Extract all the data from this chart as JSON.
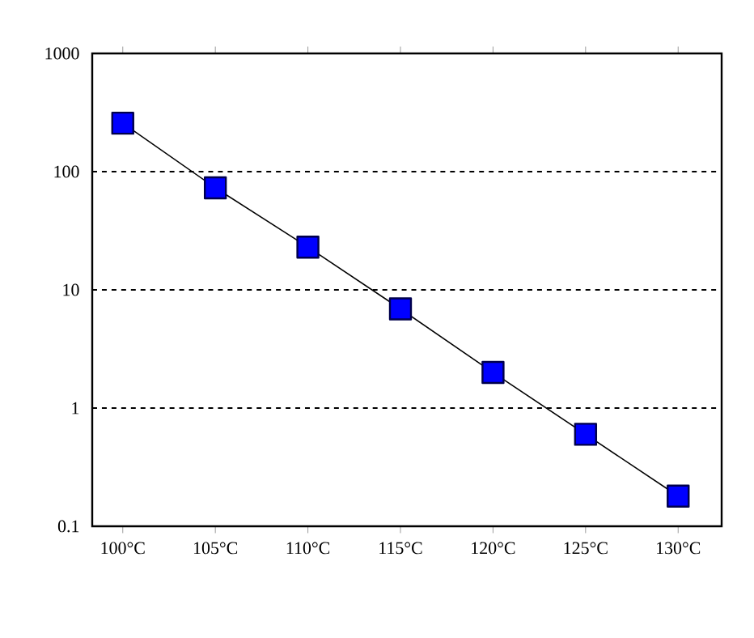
{
  "chart_data": {
    "type": "line",
    "categories": [
      "100°C",
      "105°C",
      "110°C",
      "115°C",
      "120°C",
      "125°C",
      "130°C"
    ],
    "series": [
      {
        "color": "#0000ff",
        "values": [
          257,
          73,
          23,
          6.9,
          2.0,
          0.6,
          0.18
        ]
      }
    ],
    "log": "y",
    "ylim": [
      0.1,
      1000
    ],
    "yticks": [
      0.1,
      1,
      10,
      100,
      1000
    ],
    "grid": "y",
    "marker": "square",
    "line_style": "solid"
  }
}
